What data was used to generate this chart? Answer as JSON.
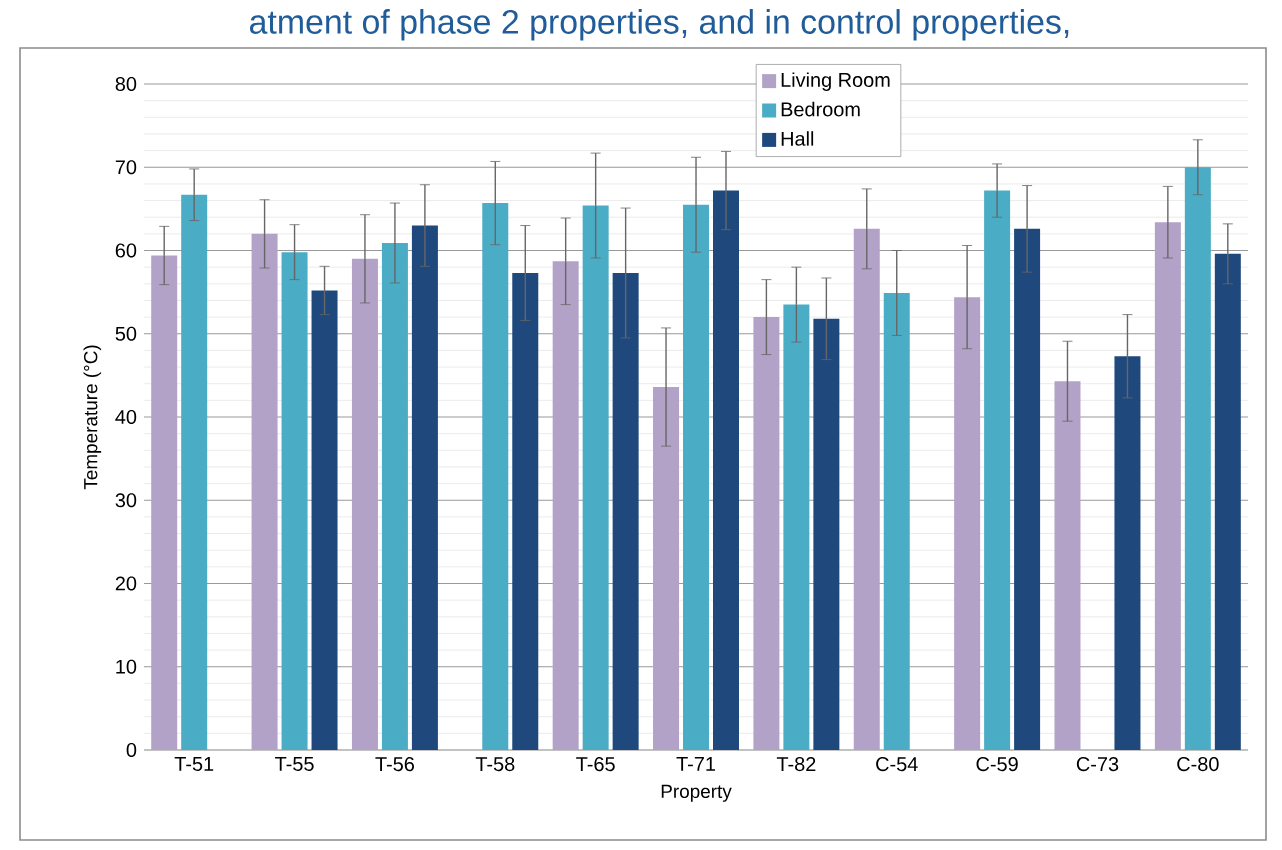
{
  "chart_data": {
    "type": "bar",
    "title": "atment of phase 2 properties, and in control properties,",
    "xlabel": "Property",
    "ylabel": "Temperature (°C)",
    "categories": [
      "T-51",
      "T-55",
      "T-56",
      "T-58",
      "T-65",
      "T-71",
      "T-82",
      "C-54",
      "C-59",
      "C-73",
      "C-80"
    ],
    "series": [
      {
        "name": "Living Room",
        "color": "#b3a2c7",
        "values": [
          59.4,
          62.0,
          59.0,
          null,
          58.7,
          43.6,
          52.0,
          62.6,
          54.4,
          44.3,
          63.4
        ],
        "errors": [
          3.5,
          4.1,
          5.3,
          null,
          5.2,
          7.1,
          4.5,
          4.8,
          6.2,
          4.8,
          4.3
        ]
      },
      {
        "name": "Bedroom",
        "color": "#4bacc6",
        "values": [
          66.7,
          59.8,
          60.9,
          65.7,
          65.4,
          65.5,
          53.5,
          54.9,
          67.2,
          null,
          70.0
        ],
        "errors": [
          3.1,
          3.3,
          4.8,
          5.0,
          6.3,
          5.7,
          4.5,
          5.1,
          3.2,
          null,
          3.3
        ]
      },
      {
        "name": "Hall",
        "color": "#1f497d",
        "values": [
          null,
          55.2,
          63.0,
          57.3,
          57.3,
          67.2,
          51.8,
          null,
          62.6,
          47.3,
          59.6
        ],
        "errors": [
          null,
          2.9,
          4.9,
          5.7,
          7.8,
          4.7,
          4.9,
          null,
          5.2,
          5.0,
          3.6
        ]
      }
    ],
    "ylim": [
      0,
      80
    ],
    "yticks": [
      0,
      10,
      20,
      30,
      40,
      50,
      60,
      70,
      80
    ],
    "grid": "y",
    "legend": "top"
  }
}
